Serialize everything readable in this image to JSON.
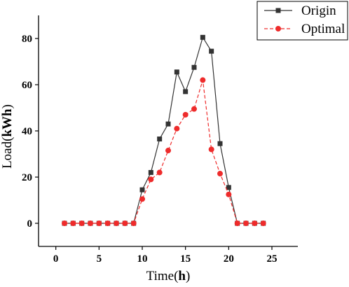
{
  "chart_data": {
    "type": "line",
    "xlabel_prefix": "Time(",
    "xlabel_unit": "h",
    "xlabel_suffix": ")",
    "ylabel_prefix": "Load(",
    "ylabel_unit": "kWh",
    "ylabel_suffix": ")",
    "xlim": [
      -2,
      28
    ],
    "ylim": [
      -10,
      90
    ],
    "xticks": [
      0,
      5,
      10,
      15,
      20,
      25
    ],
    "yticks": [
      0,
      20,
      40,
      60,
      80
    ],
    "grid": false,
    "legend_position": "top-right",
    "x": [
      1,
      2,
      3,
      4,
      5,
      6,
      7,
      8,
      9,
      10,
      11,
      12,
      13,
      14,
      15,
      16,
      17,
      18,
      19,
      20,
      21,
      22,
      23,
      24
    ],
    "series": [
      {
        "name": "Origin",
        "color": "#333333",
        "marker": "square",
        "line_style": "solid",
        "values": [
          0,
          0,
          0,
          0,
          0,
          0,
          0,
          0,
          0,
          14.5,
          22,
          36.5,
          43,
          65.5,
          57,
          67.5,
          80.5,
          74.5,
          34.5,
          15.5,
          0,
          0,
          0,
          0
        ]
      },
      {
        "name": "Optimal",
        "color": "#ee2b2b",
        "marker": "circle",
        "line_style": "dashed",
        "values": [
          0,
          0,
          0,
          0,
          0,
          0,
          0,
          0,
          0,
          10.5,
          19,
          22,
          31.5,
          41,
          47,
          49.5,
          62,
          32,
          21.5,
          12.5,
          0,
          0,
          0,
          0
        ]
      }
    ]
  }
}
